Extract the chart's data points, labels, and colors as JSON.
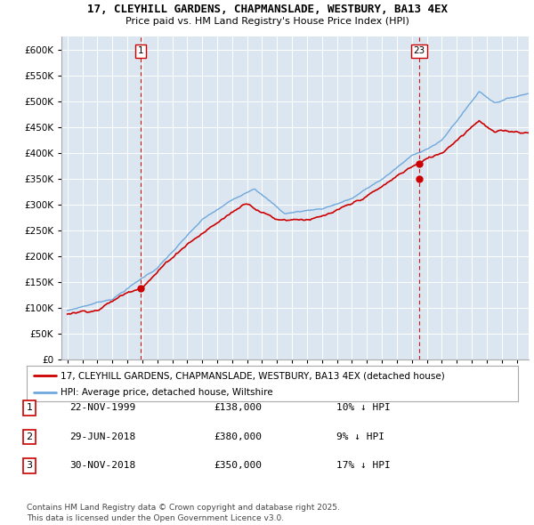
{
  "title": "17, CLEYHILL GARDENS, CHAPMANSLADE, WESTBURY, BA13 4EX",
  "subtitle": "Price paid vs. HM Land Registry's House Price Index (HPI)",
  "background_color": "#dce6f0",
  "plot_bg_color": "#dce6f0",
  "ylim": [
    0,
    625000
  ],
  "yticks": [
    0,
    50000,
    100000,
    150000,
    200000,
    250000,
    300000,
    350000,
    400000,
    450000,
    500000,
    550000,
    600000
  ],
  "xlim_start": 1994.6,
  "xlim_end": 2025.8,
  "xticks": [
    1995,
    1996,
    1997,
    1998,
    1999,
    2000,
    2001,
    2002,
    2003,
    2004,
    2005,
    2006,
    2007,
    2008,
    2009,
    2010,
    2011,
    2012,
    2013,
    2014,
    2015,
    2016,
    2017,
    2018,
    2019,
    2020,
    2021,
    2022,
    2023,
    2024,
    2025
  ],
  "hpi_color": "#6fa8dc",
  "price_color": "#cc0000",
  "sale1_x": 1999.9,
  "sale1_y": 138000,
  "sale23_x": 2018.5,
  "sale2_y": 380000,
  "sale3_y": 350000,
  "legend_line1": "17, CLEYHILL GARDENS, CHAPMANSLADE, WESTBURY, BA13 4EX (detached house)",
  "legend_line2": "HPI: Average price, detached house, Wiltshire",
  "table_rows": [
    {
      "num": 1,
      "date": "22-NOV-1999",
      "price": "£138,000",
      "note": "10% ↓ HPI"
    },
    {
      "num": 2,
      "date": "29-JUN-2018",
      "price": "£380,000",
      "note": "9% ↓ HPI"
    },
    {
      "num": 3,
      "date": "30-NOV-2018",
      "price": "£350,000",
      "note": "17% ↓ HPI"
    }
  ],
  "footer": "Contains HM Land Registry data © Crown copyright and database right 2025.\nThis data is licensed under the Open Government Licence v3.0."
}
